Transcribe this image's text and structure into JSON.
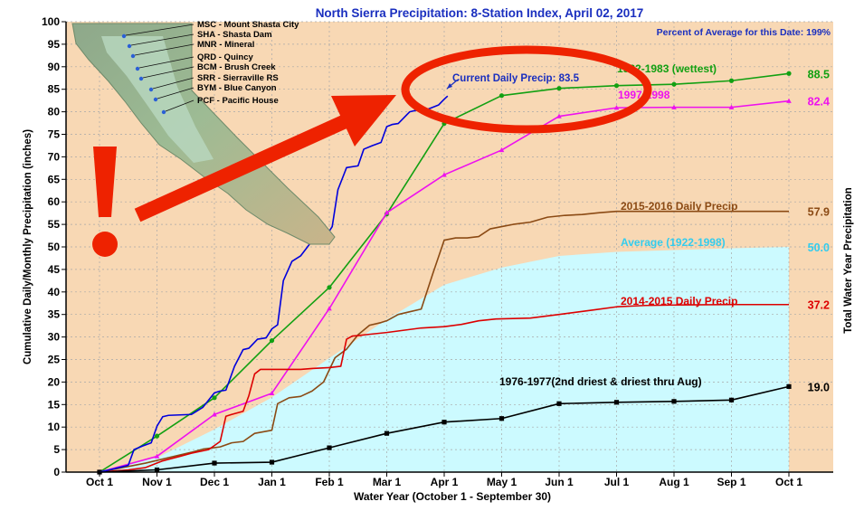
{
  "chart_data": {
    "type": "line",
    "title": "North Sierra Precipitation: 8-Station Index, April 02, 2017",
    "subtitle": "Percent of Average for this Date: 199%",
    "xlabel": "Water Year (October 1 - September 30)",
    "ylabel": "Cumulative Daily/Monthly Precipitation (inches)",
    "ylabel_right": "Total Water Year Precipitation",
    "ylim": [
      0,
      100
    ],
    "yticks": [
      0,
      5,
      10,
      15,
      20,
      25,
      30,
      35,
      40,
      45,
      50,
      55,
      60,
      65,
      70,
      75,
      80,
      85,
      90,
      95,
      100
    ],
    "x_ticks": [
      "Oct 1",
      "Nov 1",
      "Dec 1",
      "Jan 1",
      "Feb 1",
      "Mar 1",
      "Apr 1",
      "May 1",
      "Jun 1",
      "Jul 1",
      "Aug 1",
      "Sep 1",
      "Oct 1"
    ],
    "xlim_months": [
      0,
      12
    ],
    "current_label": "Current Daily Precip: 83.5",
    "stations": [
      "MSC - Mount Shasta City",
      "SHA - Shasta Dam",
      "MNR - Mineral",
      "QRD - Quincy",
      "BCM - Brush Creek",
      "SRR - Sierraville RS",
      "BYM - Blue Canyon",
      "PCF - Pacific House"
    ],
    "average": {
      "name": "Average (1922-1998)",
      "total_label": "50.0",
      "color": "#ccfaff",
      "text_color": "#33ccee",
      "x": [
        0,
        1,
        2,
        3,
        4,
        5,
        6,
        7,
        8,
        9,
        10,
        11,
        12
      ],
      "y": [
        0,
        3.2,
        9.5,
        16.6,
        25.3,
        33.9,
        41.6,
        45.4,
        48.0,
        48.9,
        49.3,
        49.7,
        50.0
      ]
    },
    "series": [
      {
        "name": "1982-1983 (wettest)",
        "total_label": "88.5",
        "color": "#12a012",
        "marker": "dot",
        "x": [
          0,
          1,
          2,
          3,
          4,
          5,
          6,
          7,
          8,
          9,
          10,
          11,
          12
        ],
        "y": [
          0,
          8.0,
          16.5,
          29.2,
          41.0,
          57.3,
          77.4,
          83.6,
          85.2,
          85.8,
          86.1,
          86.9,
          88.5
        ]
      },
      {
        "name": "1997-1998",
        "total_label": "82.4",
        "color": "#ee11ee",
        "marker": "triangle",
        "x": [
          0,
          1,
          2,
          3,
          4,
          5,
          6,
          7,
          8,
          9,
          10,
          11,
          12
        ],
        "y": [
          0,
          3.5,
          12.8,
          17.5,
          36.3,
          57.6,
          66.0,
          71.5,
          79.0,
          80.9,
          81.0,
          81.0,
          82.4
        ]
      },
      {
        "name": "2015-2016 Daily Precip",
        "total_label": "57.9",
        "color": "#8b4a14",
        "marker": "none",
        "x": [
          0,
          0.8,
          1.2,
          1.6,
          1.8,
          2.1,
          2.3,
          2.5,
          2.7,
          3.0,
          3.1,
          3.3,
          3.5,
          3.7,
          3.9,
          4.1,
          4.3,
          4.5,
          4.7,
          4.9,
          5.0,
          5.2,
          5.4,
          5.6,
          5.8,
          6.0,
          6.2,
          6.4,
          6.6,
          6.8,
          7.0,
          7.2,
          7.5,
          7.8,
          8.1,
          8.4,
          8.7,
          9.0,
          9.5,
          10.0,
          11.0,
          12.0
        ],
        "y": [
          0,
          2.0,
          3.2,
          4.4,
          5.1,
          5.6,
          6.5,
          6.8,
          8.6,
          9.3,
          15.2,
          16.5,
          16.8,
          18.0,
          20.0,
          25.4,
          27.3,
          30.5,
          32.6,
          33.2,
          33.6,
          35.0,
          35.6,
          36.2,
          44.0,
          51.5,
          52.0,
          52.0,
          52.3,
          54.0,
          54.5,
          55.0,
          55.5,
          56.6,
          57.0,
          57.2,
          57.6,
          57.9,
          57.9,
          57.9,
          57.9,
          57.9
        ]
      },
      {
        "name": "2014-2015 Daily Precip",
        "total_label": "37.2",
        "color": "#dd0000",
        "marker": "none",
        "x": [
          0,
          0.5,
          0.8,
          1.1,
          1.4,
          1.6,
          1.9,
          2.1,
          2.2,
          2.3,
          2.5,
          2.6,
          2.7,
          2.8,
          3.0,
          3.2,
          3.5,
          3.7,
          4.0,
          4.2,
          4.3,
          4.4,
          4.5,
          4.7,
          5.0,
          5.3,
          5.6,
          6.0,
          6.3,
          6.6,
          6.9,
          7.2,
          7.5,
          8.0,
          8.3,
          8.6,
          9.0,
          9.5,
          10.0,
          11.0,
          11.7,
          12.0
        ],
        "y": [
          0,
          0.5,
          1.0,
          2.5,
          3.5,
          4.2,
          5.0,
          6.8,
          12.4,
          12.8,
          13.5,
          17.0,
          21.8,
          22.8,
          22.8,
          22.8,
          22.8,
          23.0,
          23.2,
          23.5,
          29.5,
          30.2,
          30.3,
          30.6,
          31.0,
          31.5,
          32.0,
          32.3,
          32.8,
          33.6,
          34.0,
          34.1,
          34.2,
          35.0,
          35.5,
          36.0,
          36.7,
          37.0,
          37.1,
          37.2,
          37.2,
          37.2
        ]
      },
      {
        "name": "1976-1977(2nd driest & driest thru Aug)",
        "total_label": "19.0",
        "color": "#000000",
        "marker": "square",
        "x": [
          0,
          1,
          2,
          3,
          4,
          5,
          6,
          7,
          8,
          9,
          10,
          11,
          12
        ],
        "y": [
          0,
          0.5,
          2.0,
          2.2,
          5.4,
          8.6,
          11.1,
          11.9,
          15.2,
          15.5,
          15.7,
          16.0,
          19.0
        ]
      },
      {
        "name": "Current Daily Precip: 83.5",
        "color": "#0000dd",
        "marker": "none",
        "x": [
          0,
          0.5,
          0.6,
          0.75,
          0.9,
          1.0,
          1.1,
          1.2,
          1.4,
          1.6,
          1.8,
          2.0,
          2.1,
          2.2,
          2.35,
          2.5,
          2.6,
          2.75,
          2.9,
          3.0,
          3.1,
          3.2,
          3.35,
          3.5,
          3.65,
          3.8,
          4.0,
          4.05,
          4.15,
          4.3,
          4.5,
          4.6,
          4.75,
          4.9,
          5.0,
          5.1,
          5.2,
          5.4,
          5.5,
          5.7,
          5.9,
          6.0,
          6.06
        ],
        "y": [
          0,
          1.5,
          5.0,
          5.8,
          6.5,
          10.2,
          12.3,
          12.6,
          12.7,
          12.8,
          14.4,
          17.6,
          18.0,
          18.2,
          23.5,
          27.2,
          27.5,
          29.5,
          29.8,
          31.8,
          32.7,
          42.5,
          46.8,
          48.0,
          50.5,
          53.2,
          53.5,
          54.5,
          62.7,
          67.6,
          68.0,
          71.7,
          72.5,
          73.2,
          76.7,
          77.2,
          77.4,
          80.0,
          80.3,
          80.5,
          81.5,
          82.8,
          83.5
        ]
      }
    ]
  }
}
